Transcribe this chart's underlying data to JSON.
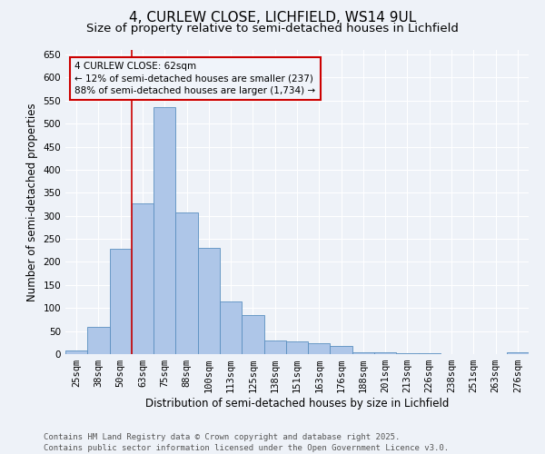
{
  "title": "4, CURLEW CLOSE, LICHFIELD, WS14 9UL",
  "subtitle": "Size of property relative to semi-detached houses in Lichfield",
  "xlabel": "Distribution of semi-detached houses by size in Lichfield",
  "ylabel": "Number of semi-detached properties",
  "categories": [
    "25sqm",
    "38sqm",
    "50sqm",
    "63sqm",
    "75sqm",
    "88sqm",
    "100sqm",
    "113sqm",
    "125sqm",
    "138sqm",
    "151sqm",
    "163sqm",
    "176sqm",
    "188sqm",
    "201sqm",
    "213sqm",
    "226sqm",
    "238sqm",
    "251sqm",
    "263sqm",
    "276sqm"
  ],
  "values": [
    8,
    59,
    228,
    328,
    535,
    308,
    230,
    114,
    85,
    30,
    27,
    24,
    17,
    3,
    3,
    1,
    1,
    0,
    0,
    0,
    3
  ],
  "bar_color": "#aec6e8",
  "bar_edge_color": "#5a8fc0",
  "vline_color": "#cc0000",
  "vline_x_index": 2.5,
  "annotation_text": "4 CURLEW CLOSE: 62sqm\n← 12% of semi-detached houses are smaller (237)\n88% of semi-detached houses are larger (1,734) →",
  "annotation_box_color": "#cc0000",
  "annotation_bg_color": "#f0f4fa",
  "ylim": [
    0,
    660
  ],
  "yticks": [
    0,
    50,
    100,
    150,
    200,
    250,
    300,
    350,
    400,
    450,
    500,
    550,
    600,
    650
  ],
  "background_color": "#eef2f8",
  "grid_color": "#ffffff",
  "footer_text": "Contains HM Land Registry data © Crown copyright and database right 2025.\nContains public sector information licensed under the Open Government Licence v3.0.",
  "title_fontsize": 11,
  "subtitle_fontsize": 9.5,
  "label_fontsize": 8.5,
  "tick_fontsize": 7.5,
  "annotation_fontsize": 7.5,
  "footer_fontsize": 6.5
}
